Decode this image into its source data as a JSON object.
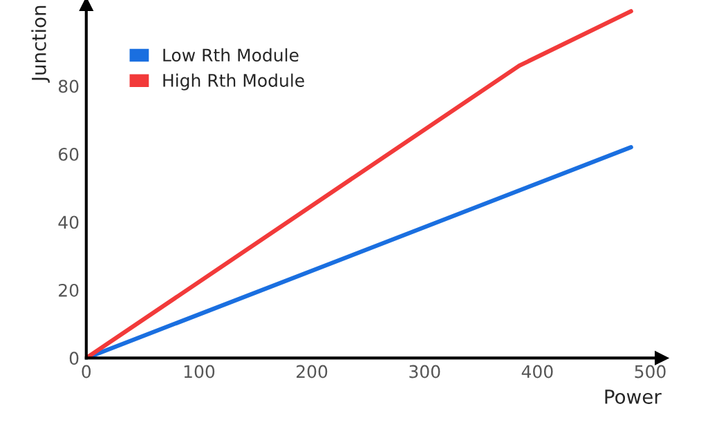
{
  "chart_data": {
    "type": "line",
    "xlabel": "Power",
    "ylabel": "Junction",
    "series": [
      {
        "name": "Low Rth Module",
        "color": "#1a6fe0",
        "x": [
          0,
          483
        ],
        "values": [
          0,
          62
        ]
      },
      {
        "name": "High Rth Module",
        "color": "#f23a3a",
        "x": [
          0,
          384,
          483
        ],
        "values": [
          0,
          86,
          102
        ]
      }
    ],
    "xlim": [
      0,
      510
    ],
    "ylim": [
      0,
      104
    ],
    "xticks": [
      0,
      100,
      200,
      300,
      400,
      500
    ],
    "yticks": [
      0,
      20,
      40,
      60,
      80
    ],
    "grid": false,
    "legend": "top left",
    "line_style": "solid",
    "marker": "none"
  }
}
